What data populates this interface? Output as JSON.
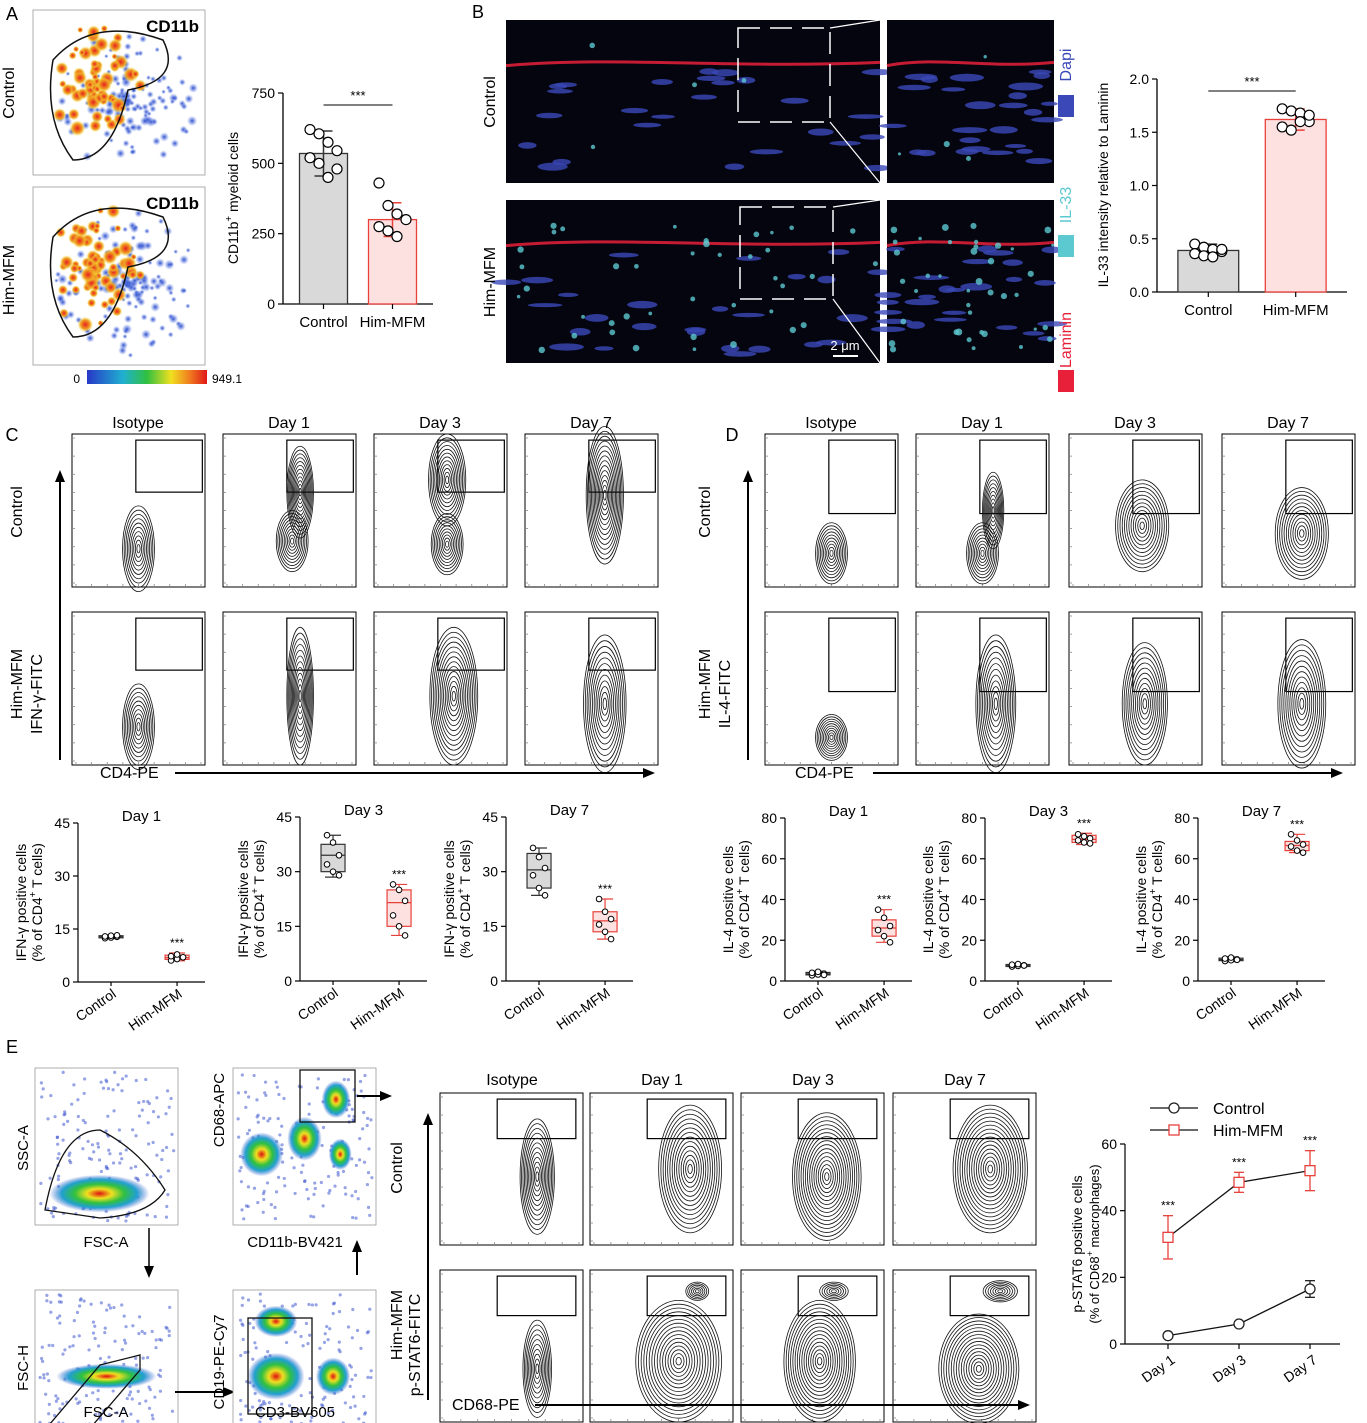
{
  "panels": {
    "A": "A",
    "B": "B",
    "C": "C",
    "D": "D",
    "E": "E"
  },
  "colors": {
    "control_fill": "#d9d9d9",
    "control_stroke": "#333333",
    "mfm_fill": "#fde0e0",
    "mfm_stroke": "#e8413b",
    "dapi": "#3a48b8",
    "il33": "#5cc8d0",
    "laminin": "#e8203a"
  },
  "panelA": {
    "marker": "CD11b",
    "rows": [
      "Control",
      "Him-MFM"
    ],
    "colorbar": {
      "min": "0",
      "max": "949.1"
    },
    "bar": {
      "ylabel_pre": "CD11b",
      "ylabel_sup": "+",
      "ylabel_post": " myeloid cells",
      "yticks": [
        "0",
        "250",
        "500",
        "750"
      ],
      "significance": "***"
    }
  },
  "panelB": {
    "rows": [
      "Control",
      "Him-MFM"
    ],
    "channels": [
      "Dapi",
      "IL-33",
      "Laminin"
    ],
    "scale_bar": "2 μm",
    "bar": {
      "ylabel": "IL-33 intensity relative to Laminin",
      "yticks": [
        "0.0",
        "0.5",
        "1.0",
        "1.5",
        "2.0"
      ],
      "significance": "***"
    }
  },
  "panelC": {
    "columns": [
      "Isotype",
      "Day 1",
      "Day 3",
      "Day 7"
    ],
    "rows": [
      "Control",
      "Him-MFM"
    ],
    "yaxis": "IFN-γ-FITC",
    "xaxis": "CD4-PE",
    "box_ylabel1": "IFN-γ positive cells",
    "box_ylabel2_pre": "(% of CD4",
    "box_ylabel2_sup": "+",
    "box_ylabel2_post": " T cells)",
    "yticks": [
      "0",
      "15",
      "30",
      "45"
    ]
  },
  "panelD": {
    "columns": [
      "Isotype",
      "Day 1",
      "Day 3",
      "Day 7"
    ],
    "rows": [
      "Control",
      "Him-MFM"
    ],
    "yaxis": "IL-4-FITC",
    "xaxis": "CD4-PE",
    "box_ylabel1": "IL-4 positive cells",
    "box_ylabel2_pre": "(% of CD4",
    "box_ylabel2_sup": "+",
    "box_ylabel2_post": " T cells)",
    "yticks": [
      "0",
      "20",
      "40",
      "60",
      "80"
    ]
  },
  "panelE": {
    "gating": {
      "g1_y": "SSC-A",
      "g1_x": "FSC-A",
      "g2_y": "CD68-APC",
      "g2_x": "CD11b-BV421",
      "g3_y": "FSC-H",
      "g3_x": "FSC-A",
      "g4_y": "CD19-PE-Cy7",
      "g4_x": "CD3-BV605"
    },
    "columns": [
      "Isotype",
      "Day 1",
      "Day 3",
      "Day 7"
    ],
    "rows": [
      "Control",
      "Him-MFM"
    ],
    "yaxis": "p-STAT6-FITC",
    "xaxis": "CD68-PE",
    "line_ylabel1": "p-STAT6 positive cells",
    "line_ylabel2_pre": "(% of CD68",
    "line_ylabel2_sup": "+",
    "line_ylabel2_post": " macrophages)",
    "yticks": [
      "0",
      "20",
      "40",
      "60"
    ]
  },
  "chart_data": [
    {
      "type": "bar",
      "panel": "A",
      "categories": [
        "Control",
        "Him-MFM"
      ],
      "values": [
        535,
        300
      ],
      "errors": [
        80,
        60
      ],
      "ylim": [
        0,
        750
      ],
      "points": [
        [
          620,
          605,
          575,
          545,
          520,
          500,
          450,
          480
        ],
        [
          430,
          350,
          320,
          300,
          275,
          260,
          240
        ]
      ],
      "significance": "***"
    },
    {
      "type": "bar",
      "panel": "B",
      "categories": [
        "Control",
        "Him-MFM"
      ],
      "values": [
        0.39,
        1.62
      ],
      "errors": [
        0.06,
        0.1
      ],
      "ylim": [
        0,
        2.0
      ],
      "points": [
        [
          0.45,
          0.42,
          0.4,
          0.38,
          0.36,
          0.34,
          0.33,
          0.4
        ],
        [
          1.72,
          1.7,
          1.68,
          1.6,
          1.55,
          1.52,
          1.6,
          1.66
        ]
      ],
      "significance": "***"
    },
    {
      "type": "box",
      "panel": "C",
      "title": "Day 1",
      "categories": [
        "Control",
        "Him-MFM"
      ],
      "ylim": [
        0,
        45
      ],
      "boxes": [
        {
          "min": 12.3,
          "q1": 12.5,
          "median": 12.8,
          "q3": 13.1,
          "max": 13.3,
          "points": [
            12.4,
            12.6,
            12.8,
            12.9,
            13.1,
            13.2
          ]
        },
        {
          "min": 6.0,
          "q1": 6.4,
          "median": 6.9,
          "q3": 7.6,
          "max": 8.2,
          "points": [
            6.1,
            6.5,
            7.0,
            7.3,
            7.8
          ]
        }
      ],
      "significance": [
        "",
        "***"
      ]
    },
    {
      "type": "box",
      "panel": "C",
      "title": "Day 3",
      "categories": [
        "Control",
        "Him-MFM"
      ],
      "ylim": [
        0,
        45
      ],
      "boxes": [
        {
          "min": 28.5,
          "q1": 30,
          "median": 34.5,
          "q3": 37.5,
          "max": 40,
          "points": [
            40,
            38,
            34.5,
            32,
            30,
            29
          ]
        },
        {
          "min": 12.5,
          "q1": 15,
          "median": 21.5,
          "q3": 25,
          "max": 26.5,
          "points": [
            26.5,
            25,
            22,
            18,
            15,
            12.5
          ]
        }
      ],
      "significance": [
        "",
        "***"
      ]
    },
    {
      "type": "box",
      "panel": "C",
      "title": "Day 7",
      "categories": [
        "Control",
        "Him-MFM"
      ],
      "ylim": [
        0,
        45
      ],
      "boxes": [
        {
          "min": 23.5,
          "q1": 25.5,
          "median": 30.5,
          "q3": 35,
          "max": 36.5,
          "points": [
            36.5,
            34,
            31,
            29,
            25.5,
            23.5
          ]
        },
        {
          "min": 11.5,
          "q1": 13.5,
          "median": 16.5,
          "q3": 19,
          "max": 22.5,
          "points": [
            22.5,
            19,
            17,
            15.5,
            13.5,
            11.5
          ]
        }
      ],
      "significance": [
        "",
        "***"
      ]
    },
    {
      "type": "box",
      "panel": "D",
      "title": "Day 1",
      "categories": [
        "Control",
        "Him-MFM"
      ],
      "ylim": [
        0,
        80
      ],
      "boxes": [
        {
          "min": 2.5,
          "q1": 3,
          "median": 3.5,
          "q3": 4.2,
          "max": 4.8,
          "points": [
            2.8,
            3.2,
            3.6,
            4.0,
            4.5,
            3.0
          ]
        },
        {
          "min": 19,
          "q1": 22,
          "median": 26,
          "q3": 30,
          "max": 35,
          "points": [
            35,
            31,
            27,
            25,
            22,
            19
          ]
        }
      ],
      "significance": [
        "",
        "***"
      ]
    },
    {
      "type": "box",
      "panel": "D",
      "title": "Day 3",
      "categories": [
        "Control",
        "Him-MFM"
      ],
      "ylim": [
        0,
        80
      ],
      "boxes": [
        {
          "min": 7,
          "q1": 7.3,
          "median": 7.7,
          "q3": 8.1,
          "max": 8.5,
          "points": [
            7.1,
            7.4,
            7.7,
            8.0,
            8.3,
            7.6
          ]
        },
        {
          "min": 67,
          "q1": 68,
          "median": 69.5,
          "q3": 71.5,
          "max": 72.5,
          "points": [
            72,
            71,
            70,
            69,
            68,
            67.5
          ]
        }
      ],
      "significance": [
        "",
        "***"
      ]
    },
    {
      "type": "box",
      "panel": "D",
      "title": "Day 7",
      "categories": [
        "Control",
        "Him-MFM"
      ],
      "ylim": [
        0,
        80
      ],
      "boxes": [
        {
          "min": 9.5,
          "q1": 10,
          "median": 10.5,
          "q3": 11.2,
          "max": 11.8,
          "points": [
            9.8,
            10.2,
            10.6,
            11.0,
            11.5,
            10.4
          ]
        },
        {
          "min": 63,
          "q1": 64,
          "median": 66.5,
          "q3": 68.5,
          "max": 72,
          "points": [
            72,
            69,
            67,
            66,
            64,
            63
          ]
        }
      ],
      "significance": [
        "",
        "***"
      ]
    },
    {
      "type": "line",
      "panel": "E",
      "x": [
        "Day 1",
        "Day 3",
        "Day 7"
      ],
      "ylim": [
        0,
        60
      ],
      "series": [
        {
          "name": "Control",
          "values": [
            2.5,
            6,
            16.5
          ],
          "errors": [
            0.5,
            0.6,
            2.5
          ]
        },
        {
          "name": "Him-MFM",
          "values": [
            32,
            48.5,
            52
          ],
          "errors": [
            6.5,
            3,
            6
          ]
        }
      ],
      "significance": [
        "***",
        "***",
        "***"
      ]
    }
  ]
}
